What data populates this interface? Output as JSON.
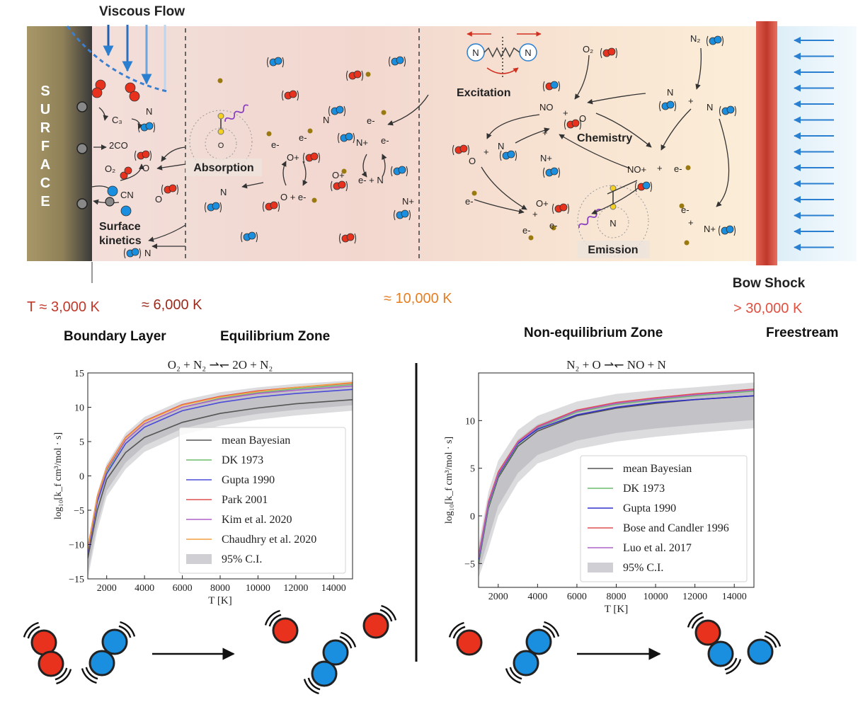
{
  "top": {
    "viscous_flow": "Viscous Flow",
    "surface_letters": [
      "S",
      "U",
      "R",
      "F",
      "A",
      "C",
      "E"
    ],
    "excitation": "Excitation",
    "absorption": "Absorption",
    "chemistry": "Chemistry",
    "emission": "Emission",
    "surface_kinetics": [
      "Surface",
      "kinetics"
    ],
    "bow_shock": "Bow Shock",
    "species": {
      "C3": "C₃",
      "2CO": "2CO",
      "CN": "CN",
      "O2_surf": "O₂",
      "O_a": "O",
      "O_b": "O",
      "N_surf": "N",
      "N_bot": "N",
      "N_mid": "N",
      "N_abs": "N",
      "O_abs": "O",
      "e1": "e-",
      "e2": "e-",
      "Oplus": "O+",
      "Oe": "O + e-",
      "Nplus": "N+",
      "e3": "e-",
      "Oplus2": "O+",
      "eN": "e- + N",
      "Nplus2": "N+",
      "O2_gas": "O₂",
      "N2_gas": "N₂",
      "NO": "NO",
      "plus1": "+",
      "O_c": "O",
      "N_r1": "N",
      "plus2": "+",
      "N_r2": "N",
      "plus3": "+",
      "O_l": "O",
      "plus4": "+",
      "N_l": "N",
      "Nplus3": "N+",
      "NOplus": "NO+",
      "plus5": "+",
      "e4": "e-",
      "e5": "e-",
      "Oplus3": "O+",
      "plus6": "+",
      "e6": "e-",
      "e7": "e-",
      "N_em": "N",
      "e8": "e-",
      "plus7": "+",
      "Nplus4": "N+",
      "e9": "e-",
      "N_exc_a": "N",
      "N_exc_b": "N"
    }
  },
  "temps": {
    "t3000": "T ≈ 3,000 K",
    "t6000": "≈ 6,000 K",
    "t10000": "≈ 10,000 K",
    "t30000": "> 30,000 K"
  },
  "zones": {
    "boundary": "Boundary Layer",
    "equilibrium": "Equilibrium Zone",
    "nonequilibrium": "Non-equilibrium Zone",
    "freestream": "Freestream"
  },
  "colors": {
    "oxygen": "#e8321e",
    "nitrogen": "#1a8fe0",
    "electron": "#9a7a10",
    "surface": "#a89868",
    "shock": "#c0392b",
    "temp_cool": "#c0392b",
    "temp_mid": "#e67e22"
  },
  "chart_data": [
    {
      "type": "line",
      "title": "O₂ + N₂ ⇀↽ 2O + N₂",
      "xlabel": "T [K]",
      "ylabel": "log₁₀[k_f cm³/mol · s]",
      "xlim": [
        1000,
        15000
      ],
      "ylim": [
        -15,
        15
      ],
      "xticks": [
        2000,
        4000,
        6000,
        8000,
        10000,
        12000,
        14000
      ],
      "yticks": [
        -15,
        -10,
        -5,
        0,
        5,
        10,
        15
      ],
      "legend_position": "lower-right",
      "series": [
        {
          "name": "mean Bayesian",
          "color": "#555555",
          "x": [
            1000,
            1500,
            2000,
            3000,
            4000,
            6000,
            8000,
            10000,
            12000,
            15000
          ],
          "values": [
            -12.0,
            -5.0,
            -0.5,
            3.4,
            5.6,
            7.8,
            9.1,
            9.9,
            10.5,
            11.1
          ]
        },
        {
          "name": "DK 1973",
          "color": "#6dbb6d",
          "x": [
            1000,
            1500,
            2000,
            3000,
            4000,
            6000,
            8000,
            10000,
            12000,
            15000
          ],
          "values": [
            -11.0,
            -3.6,
            0.5,
            5.2,
            7.6,
            10.0,
            11.3,
            12.1,
            12.7,
            13.3
          ]
        },
        {
          "name": "Gupta 1990",
          "color": "#4b4bd8",
          "x": [
            1000,
            1500,
            2000,
            3000,
            4000,
            6000,
            8000,
            10000,
            12000,
            15000
          ],
          "values": [
            -11.2,
            -3.8,
            0.3,
            4.7,
            7.1,
            9.5,
            10.7,
            11.5,
            12.0,
            12.6
          ]
        },
        {
          "name": "Park 2001",
          "color": "#e05050",
          "x": [
            1000,
            1500,
            2000,
            3000,
            4000,
            6000,
            8000,
            10000,
            12000,
            15000
          ],
          "values": [
            -10.5,
            -3.0,
            1.2,
            5.6,
            8.0,
            10.4,
            11.6,
            12.4,
            12.9,
            13.5
          ]
        },
        {
          "name": "Kim et al. 2020",
          "color": "#b060c8",
          "x": [
            1000,
            1500,
            2000,
            3000,
            4000,
            6000,
            8000,
            10000,
            12000,
            15000
          ],
          "values": [
            -10.8,
            -3.3,
            0.9,
            5.2,
            7.6,
            10.0,
            11.2,
            12.0,
            12.5,
            13.1
          ]
        },
        {
          "name": "Chaudhry et al. 2020",
          "color": "#f0a040",
          "x": [
            1000,
            1500,
            2000,
            3000,
            4000,
            6000,
            8000,
            10000,
            12000,
            15000
          ],
          "values": [
            -10.6,
            -3.1,
            1.1,
            5.5,
            7.9,
            10.3,
            11.5,
            12.3,
            12.9,
            13.6
          ]
        }
      ],
      "ci": {
        "name": "95% C.I.",
        "x": [
          1000,
          1500,
          2000,
          3000,
          4000,
          6000,
          8000,
          10000,
          12000,
          15000
        ],
        "lower": [
          -15.0,
          -8.0,
          -3.0,
          1.0,
          3.5,
          6.0,
          7.3,
          8.2,
          8.8,
          9.5
        ],
        "upper": [
          -10.0,
          -2.5,
          1.8,
          6.2,
          8.6,
          11.0,
          12.2,
          12.9,
          13.4,
          13.9
        ]
      }
    },
    {
      "type": "line",
      "title": "N₂ + O ⇀↽ NO + N",
      "xlabel": "T [K]",
      "ylabel": "log₁₀[k_f cm³/mol · s]",
      "xlim": [
        1000,
        15000
      ],
      "ylim": [
        -7.5,
        15
      ],
      "xticks": [
        2000,
        4000,
        6000,
        8000,
        10000,
        12000,
        14000
      ],
      "yticks": [
        -5,
        0,
        5,
        10
      ],
      "legend_position": "lower-right",
      "series": [
        {
          "name": "mean Bayesian",
          "color": "#555555",
          "x": [
            1000,
            1500,
            2000,
            3000,
            4000,
            6000,
            8000,
            10000,
            12000,
            15000
          ],
          "values": [
            -5.0,
            0.8,
            4.0,
            7.3,
            8.9,
            10.5,
            11.3,
            11.8,
            12.2,
            12.6
          ]
        },
        {
          "name": "DK 1973",
          "color": "#6dbb6d",
          "x": [
            1000,
            1500,
            2000,
            3000,
            4000,
            6000,
            8000,
            10000,
            12000,
            15000
          ],
          "values": [
            -4.8,
            1.0,
            4.2,
            7.5,
            9.2,
            10.9,
            11.7,
            12.2,
            12.6,
            13.1
          ]
        },
        {
          "name": "Gupta 1990",
          "color": "#3030c8",
          "x": [
            1000,
            1500,
            2000,
            3000,
            4000,
            6000,
            8000,
            10000,
            12000,
            15000
          ],
          "values": [
            -4.6,
            1.2,
            4.3,
            7.6,
            9.1,
            10.6,
            11.4,
            11.9,
            12.2,
            12.6
          ]
        },
        {
          "name": "Bose and Candler 1996",
          "color": "#e05050",
          "x": [
            1000,
            1500,
            2000,
            3000,
            4000,
            6000,
            8000,
            10000,
            12000,
            15000
          ],
          "values": [
            -4.2,
            1.5,
            4.6,
            7.8,
            9.4,
            11.1,
            11.9,
            12.4,
            12.8,
            13.3
          ]
        },
        {
          "name": "Luo et al. 2017",
          "color": "#b060c8",
          "x": [
            1000,
            1500,
            2000,
            3000,
            4000,
            6000,
            8000,
            10000,
            12000,
            15000
          ],
          "values": [
            -4.4,
            1.3,
            4.4,
            7.7,
            9.3,
            11.0,
            11.8,
            12.3,
            12.7,
            13.2
          ]
        }
      ],
      "ci": {
        "name": "95% C.I.",
        "x": [
          1000,
          1500,
          2000,
          3000,
          4000,
          6000,
          8000,
          10000,
          12000,
          15000
        ],
        "lower": [
          -6.5,
          -3.5,
          0.0,
          3.5,
          5.5,
          7.0,
          7.8,
          8.3,
          8.7,
          9.2
        ],
        "upper": [
          -3.0,
          2.5,
          5.8,
          9.0,
          10.5,
          12.0,
          12.8,
          13.2,
          13.5,
          14.0
        ]
      }
    }
  ]
}
